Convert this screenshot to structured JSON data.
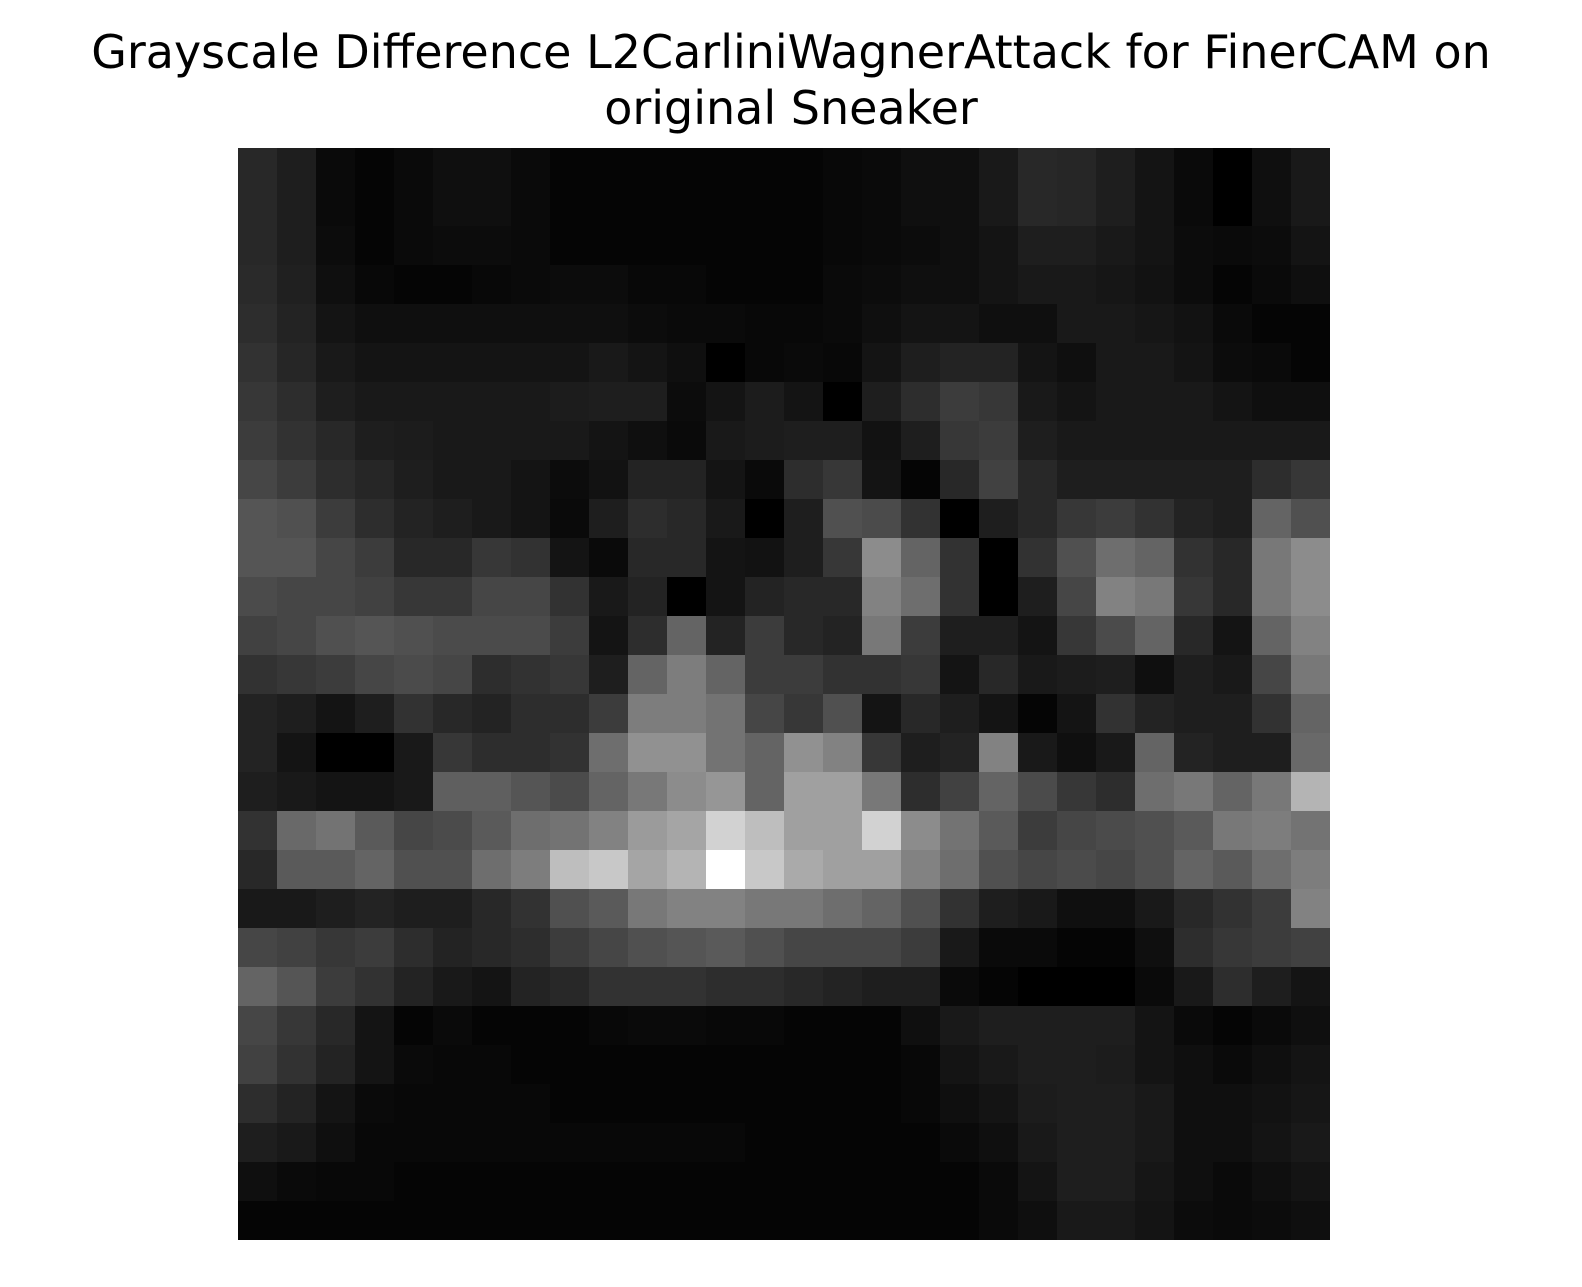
{
  "chart_data": {
    "type": "heatmap",
    "title_lines": [
      "Grayscale Difference L2CarliniWagnerAttack for FinerCAM on",
      "original Sneaker"
    ],
    "colormap": "gray",
    "value_range": [
      0,
      255
    ],
    "axes_visible": false,
    "rows": 28,
    "cols": 28,
    "values": [
      [
        40,
        30,
        10,
        5,
        10,
        15,
        15,
        10,
        5,
        5,
        5,
        5,
        5,
        5,
        5,
        8,
        10,
        15,
        15,
        25,
        40,
        38,
        30,
        20,
        10,
        0,
        15,
        25
      ],
      [
        40,
        30,
        10,
        5,
        10,
        15,
        15,
        10,
        5,
        5,
        5,
        5,
        5,
        5,
        5,
        8,
        10,
        15,
        15,
        25,
        40,
        38,
        30,
        20,
        10,
        0,
        15,
        25
      ],
      [
        40,
        30,
        12,
        5,
        10,
        12,
        12,
        10,
        5,
        5,
        5,
        5,
        5,
        5,
        5,
        8,
        10,
        12,
        15,
        20,
        30,
        30,
        25,
        20,
        12,
        10,
        12,
        20
      ],
      [
        42,
        32,
        15,
        8,
        5,
        5,
        8,
        10,
        12,
        12,
        8,
        8,
        5,
        5,
        5,
        10,
        12,
        15,
        15,
        20,
        25,
        25,
        22,
        18,
        12,
        5,
        10,
        15
      ],
      [
        45,
        35,
        20,
        15,
        15,
        15,
        15,
        15,
        15,
        15,
        12,
        10,
        10,
        8,
        8,
        10,
        15,
        20,
        20,
        15,
        15,
        25,
        25,
        22,
        18,
        10,
        5,
        5
      ],
      [
        50,
        38,
        25,
        20,
        20,
        20,
        20,
        20,
        20,
        25,
        20,
        15,
        0,
        8,
        10,
        8,
        20,
        30,
        35,
        35,
        20,
        15,
        25,
        25,
        20,
        12,
        10,
        5
      ],
      [
        55,
        45,
        30,
        25,
        25,
        25,
        25,
        25,
        28,
        30,
        30,
        12,
        20,
        28,
        20,
        0,
        30,
        45,
        60,
        55,
        25,
        20,
        25,
        25,
        25,
        20,
        15,
        15
      ],
      [
        60,
        50,
        40,
        30,
        28,
        25,
        25,
        25,
        25,
        20,
        15,
        10,
        25,
        28,
        30,
        30,
        18,
        30,
        55,
        60,
        30,
        25,
        25,
        25,
        25,
        25,
        25,
        25
      ],
      [
        70,
        60,
        45,
        38,
        30,
        25,
        25,
        20,
        12,
        18,
        35,
        35,
        20,
        10,
        45,
        55,
        20,
        5,
        40,
        65,
        40,
        30,
        30,
        30,
        30,
        30,
        45,
        55
      ],
      [
        85,
        80,
        60,
        45,
        35,
        30,
        25,
        20,
        10,
        30,
        45,
        40,
        25,
        0,
        30,
        80,
        75,
        50,
        0,
        30,
        40,
        55,
        60,
        50,
        35,
        30,
        100,
        80
      ],
      [
        85,
        85,
        70,
        60,
        40,
        40,
        55,
        50,
        20,
        10,
        40,
        40,
        20,
        18,
        30,
        55,
        140,
        100,
        50,
        0,
        50,
        80,
        110,
        100,
        50,
        40,
        120,
        140
      ],
      [
        75,
        70,
        70,
        65,
        55,
        55,
        70,
        70,
        50,
        25,
        35,
        0,
        20,
        35,
        40,
        40,
        130,
        110,
        50,
        0,
        30,
        70,
        130,
        120,
        55,
        40,
        120,
        140
      ],
      [
        65,
        70,
        80,
        85,
        80,
        75,
        75,
        75,
        60,
        20,
        45,
        100,
        35,
        60,
        40,
        35,
        120,
        60,
        30,
        30,
        20,
        55,
        75,
        100,
        40,
        20,
        100,
        130
      ],
      [
        50,
        55,
        60,
        70,
        75,
        70,
        45,
        50,
        55,
        30,
        100,
        125,
        100,
        60,
        60,
        50,
        50,
        55,
        20,
        40,
        25,
        28,
        30,
        15,
        30,
        25,
        70,
        120
      ],
      [
        35,
        30,
        20,
        30,
        50,
        40,
        35,
        45,
        45,
        60,
        125,
        125,
        115,
        70,
        55,
        80,
        20,
        40,
        30,
        20,
        5,
        20,
        50,
        35,
        30,
        30,
        50,
        100
      ],
      [
        35,
        20,
        0,
        0,
        25,
        55,
        45,
        45,
        50,
        110,
        145,
        145,
        115,
        100,
        145,
        130,
        55,
        30,
        35,
        130,
        25,
        15,
        25,
        100,
        35,
        30,
        30,
        105
      ],
      [
        30,
        25,
        20,
        20,
        25,
        95,
        95,
        85,
        75,
        100,
        120,
        140,
        150,
        100,
        160,
        160,
        120,
        45,
        65,
        100,
        75,
        55,
        45,
        110,
        120,
        100,
        120,
        180
      ],
      [
        50,
        105,
        115,
        90,
        70,
        75,
        90,
        110,
        115,
        130,
        155,
        165,
        210,
        190,
        160,
        160,
        210,
        140,
        115,
        90,
        60,
        70,
        75,
        80,
        90,
        120,
        125,
        115
      ],
      [
        40,
        90,
        90,
        100,
        80,
        80,
        110,
        125,
        190,
        200,
        165,
        180,
        255,
        200,
        170,
        160,
        160,
        130,
        110,
        80,
        70,
        75,
        70,
        80,
        100,
        90,
        110,
        125
      ],
      [
        25,
        25,
        30,
        35,
        30,
        30,
        40,
        50,
        80,
        90,
        120,
        130,
        130,
        120,
        120,
        110,
        100,
        80,
        50,
        30,
        25,
        15,
        15,
        25,
        40,
        50,
        60,
        130
      ],
      [
        70,
        65,
        55,
        60,
        45,
        35,
        40,
        45,
        60,
        70,
        80,
        85,
        90,
        80,
        70,
        70,
        70,
        60,
        25,
        10,
        10,
        5,
        5,
        15,
        45,
        55,
        60,
        65
      ],
      [
        100,
        85,
        60,
        50,
        35,
        25,
        20,
        35,
        40,
        50,
        50,
        50,
        45,
        45,
        40,
        35,
        30,
        30,
        10,
        5,
        0,
        0,
        0,
        10,
        25,
        45,
        30,
        20
      ],
      [
        70,
        55,
        40,
        20,
        5,
        10,
        5,
        5,
        5,
        8,
        10,
        10,
        8,
        8,
        5,
        5,
        5,
        15,
        25,
        30,
        30,
        30,
        30,
        20,
        10,
        5,
        10,
        15
      ],
      [
        65,
        50,
        35,
        20,
        10,
        8,
        8,
        5,
        5,
        5,
        5,
        5,
        5,
        5,
        5,
        5,
        5,
        8,
        20,
        25,
        30,
        30,
        28,
        20,
        15,
        10,
        15,
        20
      ],
      [
        45,
        35,
        20,
        10,
        8,
        8,
        8,
        8,
        5,
        5,
        5,
        5,
        5,
        5,
        5,
        5,
        5,
        8,
        15,
        20,
        28,
        30,
        30,
        25,
        15,
        15,
        18,
        22
      ],
      [
        30,
        25,
        15,
        8,
        8,
        8,
        8,
        8,
        8,
        8,
        8,
        8,
        8,
        5,
        5,
        5,
        5,
        5,
        10,
        15,
        25,
        30,
        30,
        25,
        15,
        15,
        20,
        25
      ],
      [
        15,
        10,
        8,
        8,
        5,
        5,
        5,
        5,
        5,
        5,
        5,
        5,
        5,
        5,
        5,
        5,
        5,
        5,
        5,
        10,
        20,
        30,
        30,
        22,
        15,
        10,
        15,
        20
      ],
      [
        5,
        5,
        5,
        5,
        5,
        5,
        5,
        5,
        5,
        5,
        5,
        5,
        5,
        5,
        5,
        5,
        5,
        5,
        5,
        10,
        15,
        25,
        25,
        20,
        12,
        10,
        12,
        15
      ]
    ]
  }
}
